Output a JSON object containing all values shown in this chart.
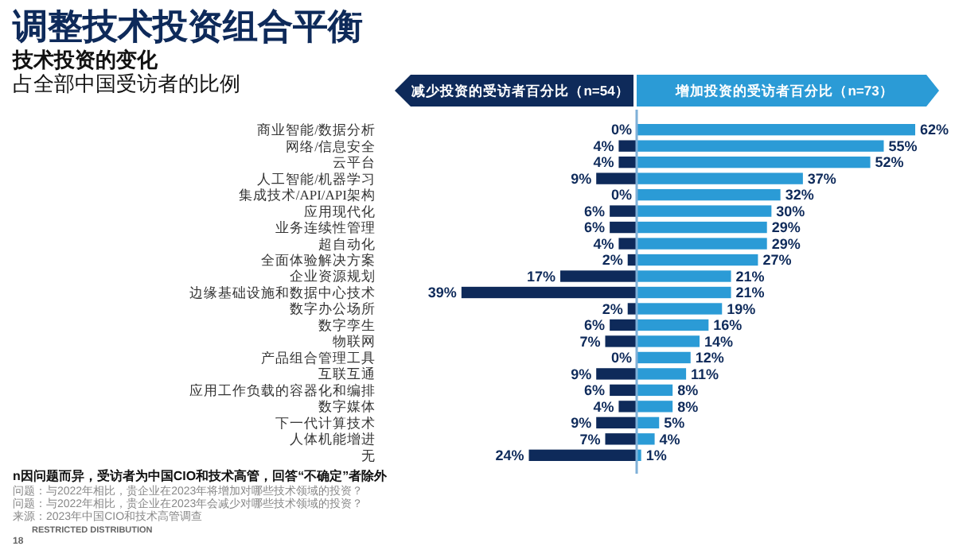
{
  "chart_data": [
    {
      "type": "bar",
      "orientation": "horizontal",
      "title": "调整技术投资组合平衡",
      "subtitle": "技术投资的变化",
      "tick_labels": "y",
      "legend": "top",
      "categories": [
        "商业智能/数据分析",
        "网络/信息安全",
        "云平台",
        "人工智能/机器学习",
        "集成技术/API/API架构",
        "应用现代化",
        "业务连续性管理",
        "超自动化",
        "全面体验解决方案",
        "企业资源规划",
        "边缘基础设施和数据中心技术",
        "数字办公场所",
        "数字孪生",
        "物联网",
        "产品组合管理工具",
        "互联互通",
        "应用工作负载的容器化和编排",
        "数字媒体",
        "下一代计算技术",
        "人体机能增进",
        "无"
      ],
      "series": [
        {
          "name": "减少投资的受访者百分比（n=54）",
          "color": "#0e2a5a",
          "values": [
            0,
            4,
            4,
            9,
            0,
            6,
            6,
            4,
            2,
            17,
            39,
            2,
            6,
            7,
            0,
            9,
            6,
            4,
            9,
            7,
            24
          ],
          "value_labels": [
            "0%",
            "4%",
            "4%",
            "9%",
            "0%",
            "6%",
            "6%",
            "4%",
            "2%",
            "17%",
            "39%",
            "2%",
            "6%",
            "7%",
            "0%",
            "9%",
            "6%",
            "4%",
            "9%",
            "7%",
            "24%"
          ]
        }
      ],
      "annotations": [
        "占全部中国受访者的比例",
        "n因问题而异，受访者为中国CIO和技术高管，回答“不确定”者除外",
        "问题：与2022年相比，贵企业在2023年将增加对哪些技术领域的投资？",
        "问题：与2022年相比，贵企业在2023年会减少对哪些技术领域的投资？",
        "来源：2023年中国CIO和技术高管调查",
        "RESTRICTED DISTRIBUTION",
        "18"
      ]
    },
    {
      "type": "bar",
      "orientation": "horizontal",
      "legend": "top",
      "categories": [
        null,
        null,
        null,
        null,
        null,
        null,
        null,
        null,
        null,
        null,
        null,
        null,
        null,
        null,
        null,
        null,
        null,
        null,
        null,
        null,
        null
      ],
      "series": [
        {
          "name": "增加投资的受访者百分比（n=73）",
          "color": "#2b9bd6",
          "values": [
            62,
            55,
            52,
            37,
            32,
            30,
            29,
            29,
            27,
            21,
            21,
            19,
            16,
            14,
            12,
            11,
            8,
            8,
            5,
            4,
            1
          ],
          "value_labels": [
            "62%",
            "55%",
            "52%",
            "37%",
            "32%",
            "30%",
            "29%",
            "29%",
            "27%",
            "21%",
            "21%",
            "19%",
            "16%",
            "14%",
            "12%",
            "11%",
            "8%",
            "8%",
            "5%",
            "4%",
            "1%"
          ]
        }
      ]
    }
  ]
}
